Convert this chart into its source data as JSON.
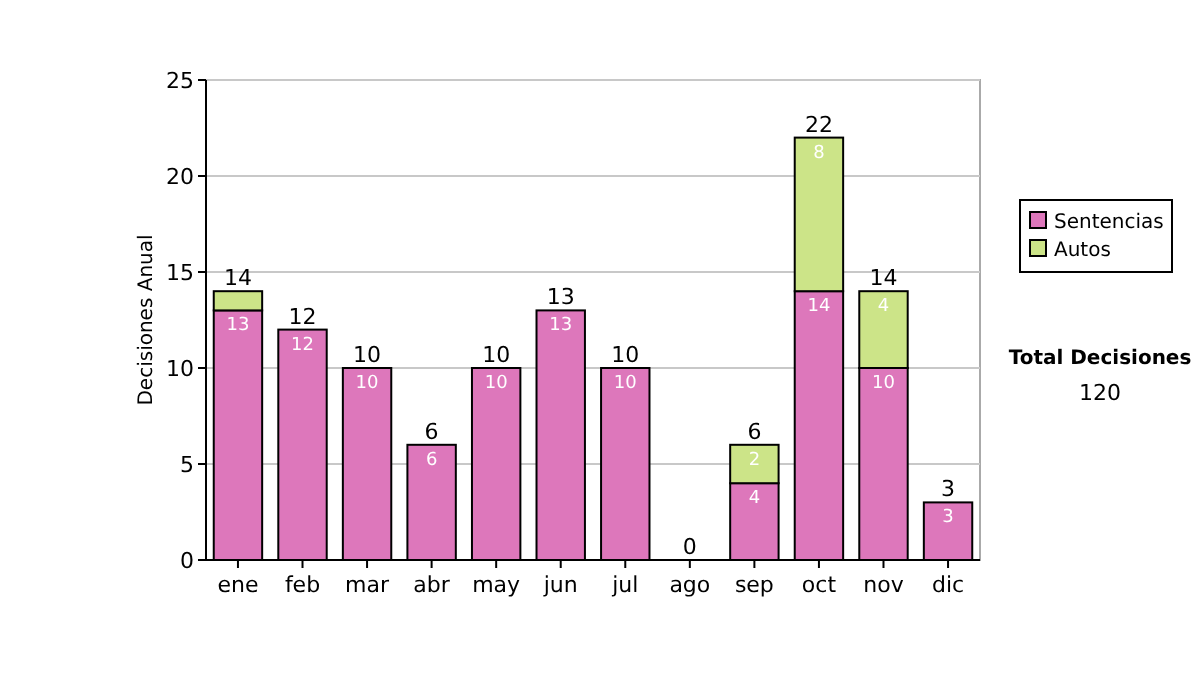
{
  "chart_data": {
    "type": "bar",
    "stacked": true,
    "ylabel": "Decisiones Anual",
    "categories": [
      "ene",
      "feb",
      "mar",
      "abr",
      "may",
      "jun",
      "jul",
      "ago",
      "sep",
      "oct",
      "nov",
      "dic"
    ],
    "series": [
      {
        "name": "Sentencias",
        "color": "#dd77bb",
        "values": [
          13,
          12,
          10,
          6,
          10,
          13,
          10,
          0,
          4,
          14,
          10,
          3
        ],
        "value_labels": [
          "13",
          "12",
          "10",
          "6",
          "10",
          "13",
          "10",
          null,
          "4",
          "14",
          "10",
          "3"
        ]
      },
      {
        "name": "Autos",
        "color": "#cce488",
        "values": [
          1,
          0,
          0,
          0,
          0,
          0,
          0,
          0,
          2,
          8,
          4,
          0
        ],
        "value_labels": [
          null,
          null,
          null,
          null,
          null,
          null,
          null,
          null,
          "2",
          "8",
          "4",
          null
        ]
      }
    ],
    "totals": [
      "14",
      "12",
      "10",
      "6",
      "10",
      "13",
      "10",
      "0",
      "6",
      "22",
      "14",
      "3"
    ],
    "ylim": [
      0,
      25
    ],
    "yticks": [
      0,
      5,
      10,
      15,
      20,
      25
    ],
    "grid": "y",
    "legend": "right",
    "annotations": [
      "Total Decisiones",
      "120"
    ]
  }
}
